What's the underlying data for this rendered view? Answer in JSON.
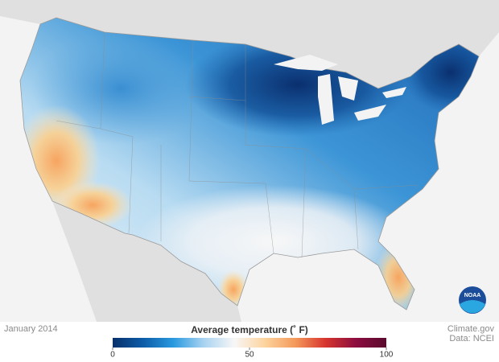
{
  "caption": "January 2014",
  "legend": {
    "title": "Average temperature (˚ F)",
    "range": [
      0,
      100
    ],
    "ticks": [
      0,
      50,
      100
    ],
    "colors": [
      "#08306b",
      "#0d5ca8",
      "#2a9ae0",
      "#a9d3f0",
      "#f7f7f7",
      "#fdd49e",
      "#f49a5c",
      "#d7352e",
      "#8c0d3f",
      "#5a0a2e"
    ]
  },
  "credits": [
    "Climate.gov",
    "Data: NCEI"
  ],
  "logo": "NOAA"
}
